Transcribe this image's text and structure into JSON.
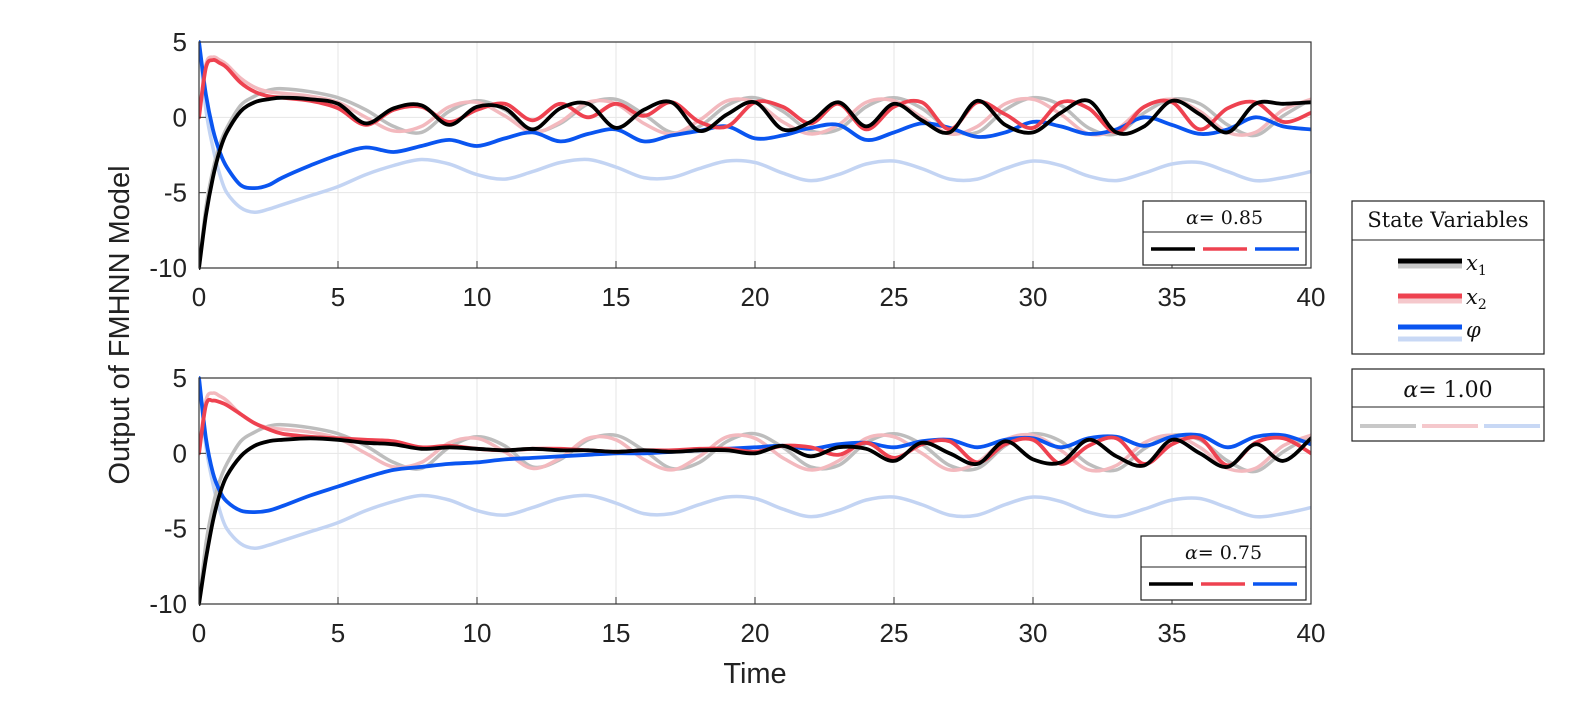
{
  "chart_data": {
    "type": "line",
    "ylabel": "Output of FMHNN Model",
    "xlabel": "Time",
    "xlim": [
      0,
      40
    ],
    "ylim": [
      -10,
      5
    ],
    "xticks": [
      "0",
      "5",
      "10",
      "15",
      "20",
      "25",
      "30",
      "35",
      "40"
    ],
    "yticks": [
      "5",
      "0",
      "-5",
      "-10"
    ],
    "grid": true,
    "legend_main": {
      "title": "State Variables",
      "entries": [
        {
          "symbol": "x",
          "subscript": "1",
          "color": "#000000"
        },
        {
          "symbol": "x",
          "subscript": "2",
          "color": "#ee4250"
        },
        {
          "symbol": "φ",
          "subscript": "",
          "color": "#0a55f0"
        }
      ]
    },
    "legend_reference": {
      "symbol": "α",
      "value": "= 1.00",
      "faded_colors": [
        "#c8c8c8",
        "#f5c8cc",
        "#c8d8f5"
      ]
    },
    "series_colors": {
      "x1": "#000000",
      "x2": "#ee4250",
      "phi": "#0a55f0",
      "x1_ref": "#bdbdbd",
      "x2_ref": "#f3b9be",
      "phi_ref": "#c3d4f3"
    },
    "reference_alpha": "1.00",
    "panels": [
      {
        "alpha_symbol": "α",
        "alpha_value": "= 0.85",
        "alpha": 0.85,
        "x": [
          0,
          0.25,
          0.5,
          0.75,
          1,
          1.5,
          2,
          2.5,
          3,
          4,
          5,
          6,
          7,
          8,
          9,
          10,
          11,
          12,
          13,
          14,
          15,
          16,
          17,
          18,
          19,
          20,
          21,
          22,
          23,
          24,
          25,
          26,
          27,
          28,
          29,
          30,
          31,
          32,
          33,
          34,
          35,
          36,
          37,
          38,
          39,
          40
        ],
        "x1": [
          -10,
          -6.5,
          -4.0,
          -2.2,
          -1.0,
          0.4,
          1.0,
          1.2,
          1.3,
          1.2,
          0.9,
          -0.4,
          0.6,
          0.8,
          -0.5,
          0.7,
          0.6,
          -0.8,
          0.6,
          0.9,
          -0.7,
          0.5,
          1.0,
          -0.9,
          0.2,
          1.0,
          -0.8,
          -0.3,
          1.0,
          -0.6,
          0.9,
          -0.2,
          -1.0,
          1.1,
          -0.5,
          -1.0,
          0.3,
          1.1,
          -1.0,
          -0.6,
          1.1,
          0.2,
          -1.0,
          0.9,
          0.9,
          1.0
        ],
        "x2": [
          0,
          3.3,
          3.8,
          3.6,
          3.3,
          2.3,
          1.7,
          1.4,
          1.3,
          1.1,
          0.6,
          -0.5,
          0.5,
          0.7,
          -0.3,
          0.5,
          0.9,
          -0.2,
          0.9,
          0.0,
          0.9,
          0.1,
          1.0,
          -0.3,
          -0.6,
          1.0,
          0.7,
          -0.4,
          0.9,
          -0.8,
          0.7,
          1.0,
          -0.8,
          1.0,
          0.2,
          -0.7,
          1.0,
          0.6,
          -1.0,
          0.7,
          1.0,
          -0.8,
          0.6,
          1.0,
          -0.3,
          0.3
        ],
        "phi": [
          5,
          1.5,
          -0.8,
          -2.3,
          -3.3,
          -4.5,
          -4.7,
          -4.5,
          -4.0,
          -3.2,
          -2.5,
          -2.0,
          -2.3,
          -1.9,
          -1.5,
          -1.9,
          -1.4,
          -1.0,
          -1.6,
          -1.1,
          -0.8,
          -1.6,
          -1.2,
          -0.9,
          -0.6,
          -1.4,
          -1.2,
          -0.7,
          -0.5,
          -1.5,
          -1.0,
          -0.4,
          -0.7,
          -1.3,
          -1.0,
          -0.3,
          -0.6,
          -1.1,
          -0.8,
          0.0,
          -0.5,
          -1.1,
          -0.8,
          0.0,
          -0.6,
          -0.8
        ],
        "x1_ref": [
          -10,
          -6.0,
          -3.5,
          -1.8,
          -0.7,
          0.8,
          1.4,
          1.8,
          1.9,
          1.7,
          1.3,
          0.5,
          -0.6,
          -1.0,
          0.4,
          1.1,
          0.5,
          -0.9,
          -0.4,
          0.9,
          1.2,
          0.2,
          -1.0,
          -0.6,
          0.8,
          1.3,
          0.4,
          -0.9,
          -0.8,
          0.7,
          1.3,
          0.6,
          -0.8,
          -1.0,
          0.5,
          1.3,
          0.8,
          -0.7,
          -1.1,
          0.3,
          1.2,
          0.9,
          -0.5,
          -1.2,
          0.1,
          1.2
        ],
        "x2_ref": [
          0,
          3.5,
          4.0,
          3.8,
          3.5,
          2.6,
          2.0,
          1.7,
          1.6,
          1.4,
          1.0,
          0.0,
          -0.9,
          -0.6,
          0.7,
          1.0,
          0.1,
          -1.0,
          -0.3,
          1.0,
          0.9,
          -0.4,
          -1.1,
          -0.2,
          1.1,
          1.0,
          -0.3,
          -1.1,
          -0.5,
          1.0,
          1.1,
          0.0,
          -1.1,
          -0.6,
          0.9,
          1.2,
          0.2,
          -1.1,
          -0.8,
          0.7,
          1.2,
          0.4,
          -1.0,
          -1.0,
          0.5,
          1.2
        ],
        "phi_ref": [
          5,
          0.5,
          -2.0,
          -3.8,
          -5.0,
          -6.0,
          -6.3,
          -6.1,
          -5.8,
          -5.2,
          -4.6,
          -3.8,
          -3.2,
          -2.8,
          -3.1,
          -3.8,
          -4.1,
          -3.6,
          -3.0,
          -2.8,
          -3.3,
          -4.0,
          -4.0,
          -3.4,
          -2.9,
          -3.0,
          -3.7,
          -4.2,
          -3.8,
          -3.1,
          -2.9,
          -3.4,
          -4.1,
          -4.1,
          -3.4,
          -2.9,
          -3.2,
          -3.9,
          -4.2,
          -3.7,
          -3.1,
          -3.0,
          -3.6,
          -4.2,
          -4.0,
          -3.6
        ]
      },
      {
        "alpha_symbol": "α",
        "alpha_value": "= 0.75",
        "alpha": 0.75,
        "x": [
          0,
          0.25,
          0.5,
          0.75,
          1,
          1.5,
          2,
          2.5,
          3,
          4,
          5,
          6,
          7,
          8,
          9,
          10,
          11,
          12,
          13,
          14,
          15,
          16,
          17,
          18,
          19,
          20,
          21,
          22,
          23,
          24,
          25,
          26,
          27,
          28,
          29,
          30,
          31,
          32,
          33,
          34,
          35,
          36,
          37,
          38,
          39,
          40
        ],
        "x1": [
          -10,
          -7.0,
          -4.5,
          -2.7,
          -1.5,
          -0.2,
          0.5,
          0.8,
          0.9,
          1.0,
          0.9,
          0.7,
          0.6,
          0.3,
          0.4,
          0.3,
          0.2,
          0.3,
          0.2,
          0.2,
          0.1,
          0.2,
          0.1,
          0.2,
          0.2,
          0.0,
          0.5,
          -0.2,
          0.4,
          0.3,
          -0.5,
          0.7,
          0.0,
          -0.7,
          0.8,
          -0.4,
          -0.6,
          0.9,
          -0.2,
          -0.8,
          0.9,
          0.0,
          -0.9,
          0.6,
          -0.5,
          1.0
        ],
        "x2": [
          0,
          3.2,
          3.5,
          3.4,
          3.2,
          2.6,
          2.0,
          1.6,
          1.3,
          1.1,
          1.0,
          0.9,
          0.8,
          0.4,
          0.5,
          0.3,
          0.2,
          0.3,
          0.3,
          0.2,
          0.1,
          0.2,
          0.2,
          0.3,
          0.3,
          0.1,
          0.5,
          0.4,
          -0.1,
          0.7,
          -0.3,
          0.6,
          0.8,
          -0.6,
          0.6,
          0.9,
          -0.7,
          0.5,
          1.0,
          -0.7,
          0.6,
          1.0,
          -0.8,
          0.7,
          1.0,
          0.0
        ],
        "phi": [
          5,
          1.0,
          -1.3,
          -2.5,
          -3.2,
          -3.8,
          -3.9,
          -3.8,
          -3.5,
          -2.8,
          -2.2,
          -1.6,
          -1.1,
          -0.9,
          -0.7,
          -0.6,
          -0.4,
          -0.3,
          -0.2,
          -0.1,
          0.0,
          0.0,
          0.1,
          0.2,
          0.3,
          0.4,
          0.5,
          0.3,
          0.6,
          0.7,
          0.4,
          0.8,
          0.9,
          0.4,
          0.9,
          1.0,
          0.4,
          1.0,
          1.1,
          0.5,
          1.1,
          1.2,
          0.4,
          1.1,
          1.2,
          0.6
        ],
        "x1_ref": [
          -10,
          -6.0,
          -3.5,
          -1.8,
          -0.7,
          0.8,
          1.4,
          1.8,
          1.9,
          1.7,
          1.3,
          0.5,
          -0.6,
          -1.0,
          0.4,
          1.1,
          0.5,
          -0.9,
          -0.4,
          0.9,
          1.2,
          0.2,
          -1.0,
          -0.6,
          0.8,
          1.3,
          0.4,
          -0.9,
          -0.8,
          0.7,
          1.3,
          0.6,
          -0.8,
          -1.0,
          0.5,
          1.3,
          0.8,
          -0.7,
          -1.1,
          0.3,
          1.2,
          0.9,
          -0.5,
          -1.2,
          0.1,
          1.2
        ],
        "x2_ref": [
          0,
          3.5,
          4.0,
          3.8,
          3.5,
          2.6,
          2.0,
          1.7,
          1.6,
          1.4,
          1.0,
          0.0,
          -0.9,
          -0.6,
          0.7,
          1.0,
          0.1,
          -1.0,
          -0.3,
          1.0,
          0.9,
          -0.4,
          -1.1,
          -0.2,
          1.1,
          1.0,
          -0.3,
          -1.1,
          -0.5,
          1.0,
          1.1,
          0.0,
          -1.1,
          -0.6,
          0.9,
          1.2,
          0.2,
          -1.1,
          -0.8,
          0.7,
          1.2,
          0.4,
          -1.0,
          -1.0,
          0.5,
          1.2
        ],
        "phi_ref": [
          5,
          0.5,
          -2.0,
          -3.8,
          -5.0,
          -6.0,
          -6.3,
          -6.1,
          -5.8,
          -5.2,
          -4.6,
          -3.8,
          -3.2,
          -2.8,
          -3.1,
          -3.8,
          -4.1,
          -3.6,
          -3.0,
          -2.8,
          -3.3,
          -4.0,
          -4.0,
          -3.4,
          -2.9,
          -3.0,
          -3.7,
          -4.2,
          -3.8,
          -3.1,
          -2.9,
          -3.4,
          -4.1,
          -4.1,
          -3.4,
          -2.9,
          -3.2,
          -3.9,
          -4.2,
          -3.7,
          -3.1,
          -3.0,
          -3.6,
          -4.2,
          -4.0,
          -3.6
        ]
      }
    ]
  }
}
